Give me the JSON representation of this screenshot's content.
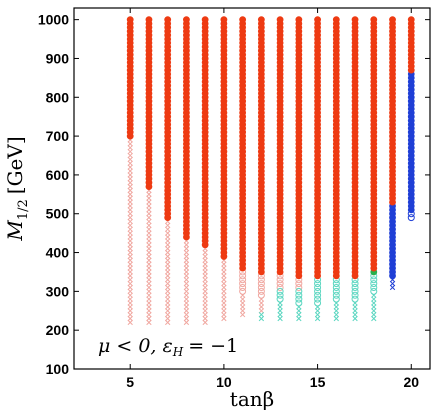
{
  "chart_data": {
    "type": "scatter",
    "xlabel": "tanβ",
    "ylabel": "M",
    "ylabel_sub": "1/2",
    "ylabel_unit": "[GeV]",
    "annotation": "μ < 0, ε",
    "annotation_sub": "H",
    "annotation_tail": "= −1",
    "xlim": [
      2,
      21
    ],
    "ylim": [
      100,
      1030
    ],
    "xticks": [
      5,
      10,
      15,
      20
    ],
    "yticks": [
      100,
      200,
      300,
      400,
      500,
      600,
      700,
      800,
      900,
      1000
    ],
    "grid": false,
    "ystep": 10,
    "colors": {
      "red": "#ee3a12",
      "blue": "#1f3fd6",
      "green": "#27b04d",
      "pink": "#f0a7a0",
      "cyan": "#5ad6c0"
    },
    "series": [
      {
        "x": 5,
        "red": [
          700,
          1000
        ],
        "pink_ring": [],
        "pink_x": [
          220,
          690
        ],
        "cyan_ring": [],
        "cyan_x": []
      },
      {
        "x": 6,
        "red": [
          570,
          1000
        ],
        "pink_ring": [],
        "pink_x": [
          220,
          560
        ],
        "cyan_ring": [],
        "cyan_x": []
      },
      {
        "x": 7,
        "red": [
          490,
          1000
        ],
        "pink_ring": [],
        "pink_x": [
          220,
          480
        ],
        "cyan_ring": [],
        "cyan_x": []
      },
      {
        "x": 8,
        "red": [
          440,
          1000
        ],
        "pink_ring": [],
        "pink_x": [
          220,
          430
        ],
        "cyan_ring": [],
        "cyan_x": []
      },
      {
        "x": 9,
        "red": [
          420,
          1000
        ],
        "pink_ring": [],
        "pink_x": [
          220,
          410
        ],
        "cyan_ring": [],
        "cyan_x": []
      },
      {
        "x": 10,
        "red": [
          390,
          1000
        ],
        "pink_ring": [],
        "pink_x": [
          230,
          380
        ],
        "cyan_ring": [],
        "cyan_x": []
      },
      {
        "x": 11,
        "red": [
          360,
          1000
        ],
        "pink_ring": [
          300,
          350
        ],
        "pink_x": [
          240,
          290
        ],
        "cyan_ring": [],
        "cyan_x": []
      },
      {
        "x": 12,
        "red": [
          350,
          1000
        ],
        "pink_ring": [
          290,
          340
        ],
        "pink_x": [
          250,
          280
        ],
        "cyan_ring": [],
        "cyan_x": [
          230,
          240
        ]
      },
      {
        "x": 13,
        "red": [
          350,
          1000
        ],
        "pink_ring": [
          310,
          340
        ],
        "pink_x": [],
        "cyan_ring": [
          280,
          300
        ],
        "cyan_x": [
          230,
          270
        ]
      },
      {
        "x": 14,
        "red": [
          340,
          1000
        ],
        "pink_ring": [
          310,
          330
        ],
        "pink_x": [],
        "cyan_ring": [
          270,
          300
        ],
        "cyan_x": [
          230,
          260
        ]
      },
      {
        "x": 15,
        "red": [
          340,
          1000
        ],
        "pink_ring": [],
        "pink_x": [],
        "cyan_ring": [
          270,
          330
        ],
        "cyan_x": [
          230,
          260
        ]
      },
      {
        "x": 16,
        "red": [
          340,
          1000
        ],
        "pink_ring": [],
        "pink_x": [],
        "cyan_ring": [
          280,
          330
        ],
        "cyan_x": [
          230,
          270
        ]
      },
      {
        "x": 17,
        "red": [
          340,
          1000
        ],
        "pink_ring": [],
        "pink_x": [],
        "cyan_ring": [
          280,
          330
        ],
        "cyan_x": [
          230,
          270
        ]
      },
      {
        "x": 18,
        "red": [
          360,
          1000
        ],
        "green": [
          350,
          350
        ],
        "pink_ring": [],
        "pink_x": [],
        "cyan_ring": [
          300,
          340
        ],
        "cyan_x": [
          230,
          290
        ]
      },
      {
        "x": 19,
        "red": [
          530,
          1000
        ],
        "blue": [
          340,
          520
        ],
        "pink_ring": [],
        "pink_x": [],
        "cyan_ring": [],
        "cyan_x": [],
        "blue_x": [
          310,
          330
        ]
      },
      {
        "x": 20,
        "red": [
          870,
          1000
        ],
        "blue": [
          510,
          860
        ],
        "blue_ring": [
          490,
          500
        ],
        "pink_ring": [],
        "pink_x": [],
        "cyan_ring": [],
        "cyan_x": []
      }
    ]
  }
}
